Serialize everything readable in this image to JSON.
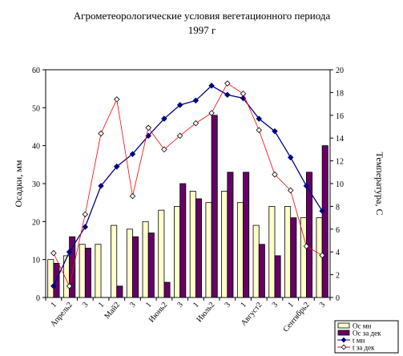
{
  "chart_data": {
    "type": "bar",
    "title": "Агрометеорологические условия вегетационного периода",
    "subtitle": "1997 г",
    "ylabel": "Осадки, мм",
    "y2label": "Температура, С",
    "ylim": [
      0,
      60
    ],
    "y2lim": [
      0,
      20
    ],
    "yticks": [
      "0",
      "10",
      "20",
      "30",
      "40",
      "50",
      "60"
    ],
    "y2ticks": [
      "0",
      "2",
      "4",
      "6",
      "8",
      "10",
      "12",
      "14",
      "16",
      "18",
      "20"
    ],
    "xtick_labels": [
      "1",
      "Апрель2",
      "3",
      "1",
      "Май2",
      "3",
      "1",
      "Июнь2",
      "3",
      "1",
      "Июль2",
      "3",
      "1",
      "Август2",
      "3",
      "1",
      "Сентябрь2",
      "3"
    ],
    "legend_position": "bottom-right",
    "series": [
      {
        "name": "Ос мн",
        "type": "bar",
        "axis": "left",
        "color": "#ffffcc",
        "values": [
          10,
          11,
          14,
          14,
          19,
          18,
          20,
          23,
          24,
          28,
          25,
          28,
          25,
          19,
          24,
          24,
          21,
          21
        ]
      },
      {
        "name": "Ос за дек",
        "type": "bar",
        "axis": "left",
        "color": "#660066",
        "values": [
          9,
          16,
          13,
          0,
          3,
          16,
          17,
          4,
          30,
          26,
          48,
          33,
          33,
          14,
          11,
          21,
          33,
          40
        ]
      },
      {
        "name": "t мн",
        "type": "line",
        "axis": "right",
        "color": "#000080",
        "marker": "diamond-filled",
        "values": [
          1.0,
          4.0,
          6.2,
          9.8,
          11.5,
          12.6,
          14.2,
          15.7,
          16.9,
          17.3,
          18.6,
          17.8,
          17.5,
          15.7,
          14.6,
          12.3,
          9.8,
          7.6
        ]
      },
      {
        "name": "t за дек",
        "type": "line",
        "axis": "right",
        "color": "#ff0000",
        "marker": "diamond-open",
        "values": [
          3.9,
          1.0,
          7.3,
          14.4,
          17.4,
          8.9,
          14.9,
          13.0,
          14.2,
          15.3,
          16.2,
          18.8,
          17.9,
          14.7,
          10.8,
          9.4,
          4.5,
          3.7
        ]
      }
    ]
  }
}
